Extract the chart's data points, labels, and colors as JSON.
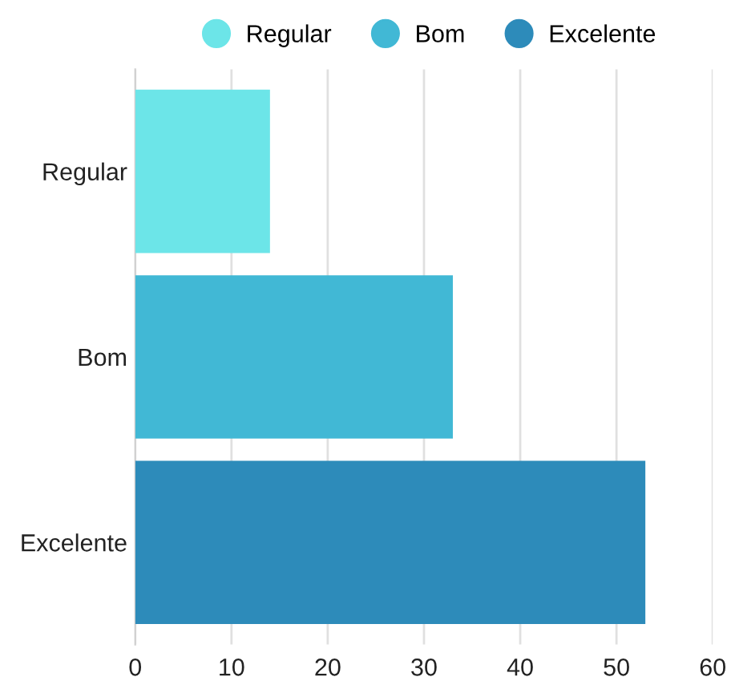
{
  "chart_data": {
    "type": "bar",
    "orientation": "horizontal",
    "categories": [
      "Regular",
      "Bom",
      "Excelente"
    ],
    "series": [
      {
        "name": "Regular",
        "color": "#6ce5e8",
        "values": [
          14,
          null,
          null
        ]
      },
      {
        "name": "Bom",
        "color": "#41b8d5",
        "values": [
          null,
          33,
          null
        ]
      },
      {
        "name": "Excelente",
        "color": "#2d8bba",
        "values": [
          null,
          null,
          53
        ]
      }
    ],
    "xlim": [
      0,
      60
    ],
    "xticks": [
      0,
      10,
      20,
      30,
      40,
      50,
      60
    ],
    "grid": "x",
    "legend": "top"
  }
}
